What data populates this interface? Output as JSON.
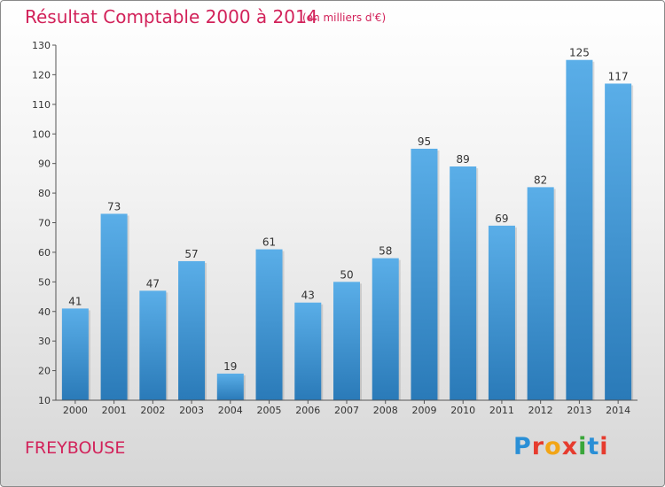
{
  "header": {
    "title": "Résultat Comptable 2000 à 2014",
    "subtitle": "(en milliers d'€)"
  },
  "footer": {
    "commune": "FREYBOUSE",
    "brand": "Proxiti",
    "brand_colors": [
      "#2a8fd6",
      "#e63b2e",
      "#f2a516",
      "#e63b2e",
      "#3aa63a",
      "#2a8fd6",
      "#e63b2e"
    ]
  },
  "chart_data": {
    "type": "bar",
    "title": "Résultat Comptable 2000 à 2014",
    "subtitle": "(en milliers d'€)",
    "xlabel": "",
    "ylabel": "",
    "categories": [
      "2000",
      "2001",
      "2002",
      "2003",
      "2004",
      "2005",
      "2006",
      "2007",
      "2008",
      "2009",
      "2010",
      "2011",
      "2012",
      "2013",
      "2014"
    ],
    "values": [
      41,
      73,
      47,
      57,
      19,
      61,
      43,
      50,
      58,
      95,
      89,
      69,
      82,
      125,
      117
    ],
    "ylim": [
      10,
      130
    ],
    "yticks": [
      10,
      20,
      30,
      40,
      50,
      60,
      70,
      80,
      90,
      100,
      110,
      120,
      130
    ],
    "grid": false,
    "legend": "none",
    "bar_color_top": "#5aaee8",
    "bar_color_bottom": "#2a7ab8"
  }
}
